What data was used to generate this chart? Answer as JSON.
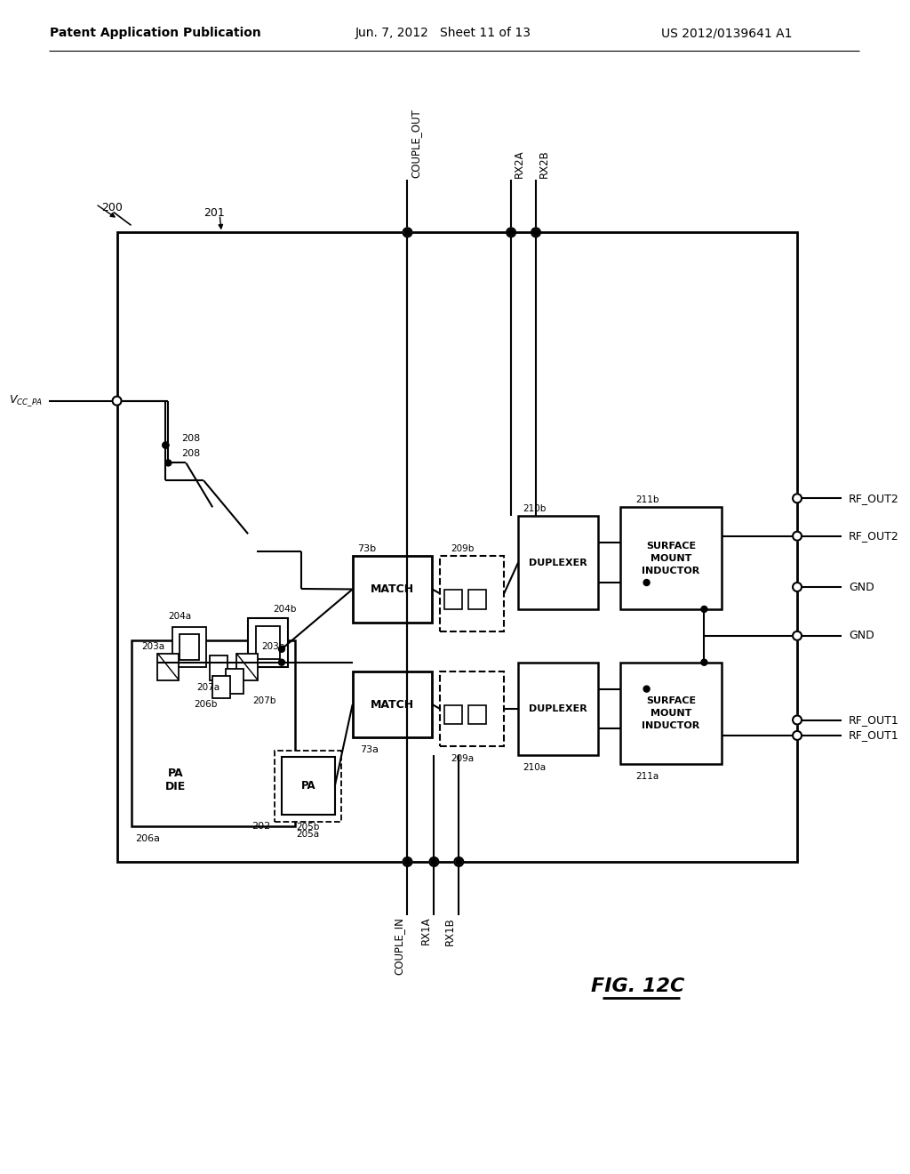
{
  "header_left": "Patent Application Publication",
  "header_mid": "Jun. 7, 2012   Sheet 11 of 13",
  "header_right": "US 2012/0139641 A1",
  "fig_label": "FIG. 12C",
  "bg_color": "#ffffff"
}
